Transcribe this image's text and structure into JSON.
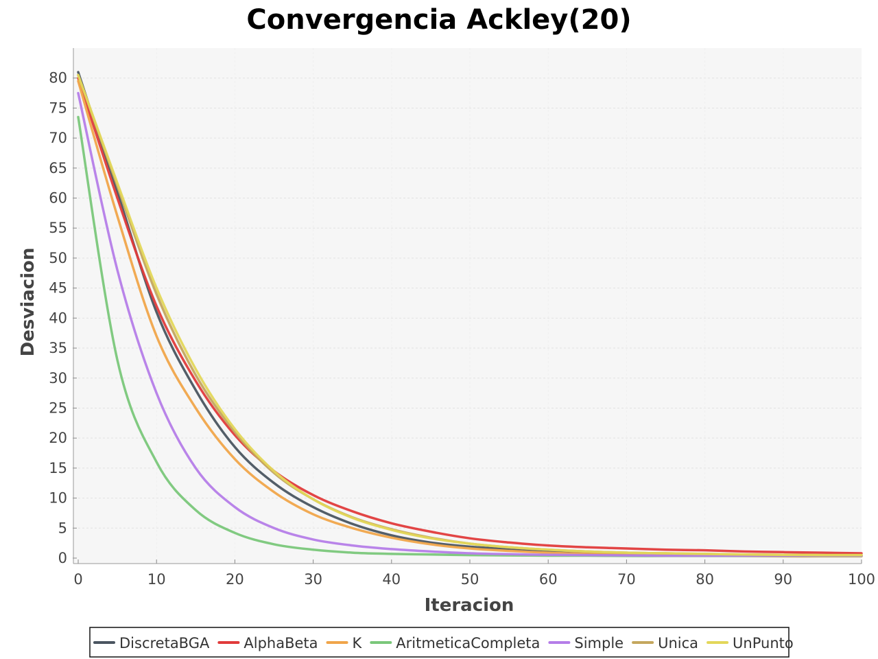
{
  "chart_data": {
    "type": "line",
    "title": "Convergencia Ackley(20)",
    "xlabel": "Iteracion",
    "ylabel": "Desviacion",
    "xlim": [
      0,
      100
    ],
    "ylim": [
      0,
      85
    ],
    "xticks": [
      0,
      10,
      20,
      30,
      40,
      50,
      60,
      70,
      80,
      90,
      100
    ],
    "yticks": [
      0,
      5,
      10,
      15,
      20,
      25,
      30,
      35,
      40,
      45,
      50,
      55,
      60,
      65,
      70,
      75,
      80
    ],
    "grid": true,
    "legend_position": "bottom",
    "x": [
      0,
      5,
      10,
      15,
      20,
      25,
      30,
      35,
      40,
      45,
      50,
      55,
      60,
      65,
      70,
      75,
      80,
      85,
      90,
      95,
      100
    ],
    "series": [
      {
        "name": "DiscretaBGA",
        "color": "#4a5560",
        "values": [
          81.0,
          61.0,
          41.0,
          28.0,
          18.5,
          12.5,
          8.5,
          5.7,
          3.8,
          2.6,
          1.9,
          1.5,
          1.2,
          0.9,
          0.6,
          0.5,
          0.45,
          0.4,
          0.4,
          0.4,
          0.4
        ]
      },
      {
        "name": "AlphaBeta",
        "color": "#e03b3b",
        "values": [
          80.0,
          60.0,
          42.0,
          29.5,
          20.5,
          14.5,
          10.5,
          7.8,
          5.8,
          4.4,
          3.3,
          2.6,
          2.1,
          1.8,
          1.6,
          1.4,
          1.3,
          1.1,
          1.0,
          0.9,
          0.8
        ]
      },
      {
        "name": "K",
        "color": "#f0a54a",
        "values": [
          79.5,
          57.0,
          37.0,
          25.0,
          16.5,
          11.0,
          7.3,
          5.0,
          3.4,
          2.3,
          1.6,
          1.2,
          0.9,
          0.7,
          0.55,
          0.45,
          0.4,
          0.35,
          0.3,
          0.3,
          0.3
        ]
      },
      {
        "name": "AritmeticaCompleta",
        "color": "#7ac77a",
        "values": [
          73.5,
          33.0,
          16.0,
          8.0,
          4.2,
          2.3,
          1.4,
          0.9,
          0.7,
          0.6,
          0.5,
          0.45,
          0.4,
          0.4,
          0.35,
          0.35,
          0.35,
          0.35,
          0.35,
          0.35,
          0.35
        ]
      },
      {
        "name": "Simple",
        "color": "#b57de8",
        "values": [
          77.5,
          48.0,
          27.5,
          15.0,
          8.5,
          5.0,
          3.1,
          2.1,
          1.5,
          1.1,
          0.8,
          0.65,
          0.55,
          0.5,
          0.45,
          0.4,
          0.4,
          0.4,
          0.4,
          0.4,
          0.4
        ]
      },
      {
        "name": "Unica",
        "color": "#c4a75e",
        "values": [
          80.5,
          62.0,
          44.0,
          30.5,
          21.0,
          14.2,
          9.8,
          6.8,
          4.8,
          3.4,
          2.4,
          1.8,
          1.4,
          1.1,
          0.9,
          0.8,
          0.7,
          0.6,
          0.55,
          0.5,
          0.5
        ]
      },
      {
        "name": "UnPunto",
        "color": "#e3d75a",
        "values": [
          80.5,
          62.5,
          45.0,
          31.5,
          21.5,
          14.5,
          9.8,
          6.7,
          4.7,
          3.3,
          2.4,
          1.8,
          1.4,
          1.1,
          0.9,
          0.8,
          0.7,
          0.6,
          0.55,
          0.5,
          0.5
        ]
      }
    ]
  }
}
